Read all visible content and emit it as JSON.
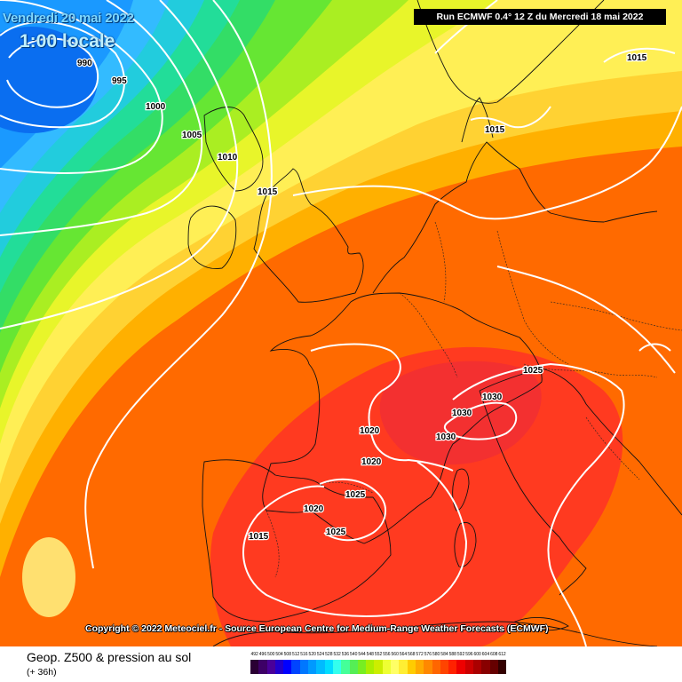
{
  "header": {
    "date_text": "Vendredi 20 mai 2022",
    "time_text": "1:00 locale",
    "run_text": "Run ECMWF 0.4° 12 Z du Mercredi 18 mai 2022"
  },
  "copyright": "Copyright © 2022 Meteociel.fr - Source European Centre for Medium-Range Weather Forecasts (ECMWF)",
  "footer": {
    "title": "Geop. Z500 & pression au sol",
    "subtitle": "(+ 36h)"
  },
  "isobar_labels": [
    {
      "id": "990",
      "text": "990"
    },
    {
      "id": "995",
      "text": "995"
    },
    {
      "id": "1000",
      "text": "1000"
    },
    {
      "id": "1005",
      "text": "1005"
    },
    {
      "id": "1010",
      "text": "1010"
    },
    {
      "id": "1015-ireland",
      "text": "1015"
    },
    {
      "id": "1015-denmark",
      "text": "1015"
    },
    {
      "id": "1015-baltic",
      "text": "1015"
    },
    {
      "id": "1015-spain",
      "text": "1015"
    },
    {
      "id": "1020-france",
      "text": "1020"
    },
    {
      "id": "1020-south-france",
      "text": "1020"
    },
    {
      "id": "1020-spain",
      "text": "1020"
    },
    {
      "id": "1025-alps",
      "text": "1025"
    },
    {
      "id": "1025-pyrenees",
      "text": "1025"
    },
    {
      "id": "1025-spain",
      "text": "1025"
    },
    {
      "id": "1030-ligurian",
      "text": "1030"
    },
    {
      "id": "1030-gulf",
      "text": "1030"
    },
    {
      "id": "1030-corsica",
      "text": "1030"
    }
  ],
  "legend": {
    "ticks": [
      "492",
      "496",
      "500",
      "504",
      "508",
      "512",
      "516",
      "520",
      "524",
      "528",
      "532",
      "536",
      "540",
      "544",
      "548",
      "552",
      "556",
      "560",
      "564",
      "568",
      "572",
      "576",
      "580",
      "584",
      "588",
      "592",
      "596",
      "600",
      "604",
      "608",
      "612"
    ],
    "colors": [
      "#2a0033",
      "#3d0066",
      "#4a0099",
      "#2200cc",
      "#0000ff",
      "#0044ff",
      "#0077ff",
      "#0099ff",
      "#00bbff",
      "#00ddff",
      "#33ffee",
      "#44ff99",
      "#55ee55",
      "#77ee22",
      "#aaee00",
      "#ccee00",
      "#eeff33",
      "#ffff66",
      "#ffee33",
      "#ffcc00",
      "#ffaa00",
      "#ff8800",
      "#ff6600",
      "#ff4400",
      "#ff2200",
      "#ee0000",
      "#cc0000",
      "#aa0000",
      "#880000",
      "#660000",
      "#330000"
    ]
  }
}
